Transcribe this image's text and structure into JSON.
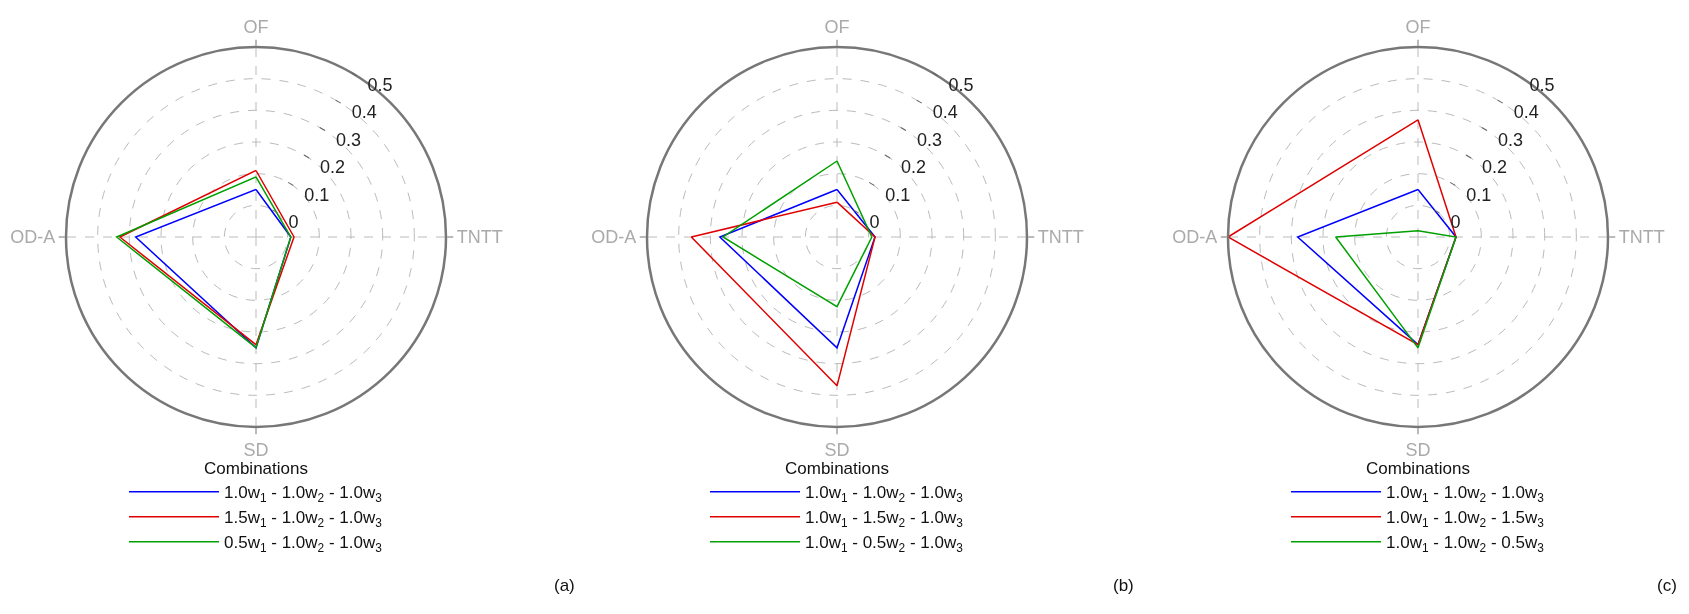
{
  "chart_data": [
    {
      "type": "radar",
      "categories": [
        "OF",
        "TNTT",
        "SD",
        "OD-A"
      ],
      "ylim": [
        -0.1,
        0.5
      ],
      "yticks": [
        0,
        0.1,
        0.2,
        0.3,
        0.4,
        0.5
      ],
      "grid": true,
      "legend": "bottom",
      "legend_title": "Combinations",
      "annotations": [
        "(a)"
      ],
      "series": [
        {
          "name": "1.0w$_{1}$ - 1.0w$_{2}$ - 1.0w$_{3}$",
          "color": "#0000ff",
          "values": [
            0.05,
            0.01,
            0.25,
            0.28
          ]
        },
        {
          "name": "1.5w$_{1}$ - 1.0w$_{2}$ - 1.0w$_{3}$",
          "color": "#e00000",
          "values": [
            0.11,
            0.02,
            0.24,
            0.33
          ]
        },
        {
          "name": "0.5w$_{1}$ - 1.0w$_{2}$ - 1.0w$_{3}$",
          "color": "#00a000",
          "values": [
            0.09,
            0.01,
            0.25,
            0.34
          ]
        }
      ]
    },
    {
      "type": "radar",
      "categories": [
        "OF",
        "TNTT",
        "SD",
        "OD-A"
      ],
      "ylim": [
        -0.1,
        0.5
      ],
      "yticks": [
        0,
        0.1,
        0.2,
        0.3,
        0.4,
        0.5
      ],
      "grid": true,
      "legend": "bottom",
      "legend_title": "Combinations",
      "annotations": [
        "(b)"
      ],
      "series": [
        {
          "name": "1.0w$_{1}$ - 1.0w$_{2}$ - 1.0w$_{3}$",
          "color": "#0000ff",
          "values": [
            0.05,
            0.02,
            0.25,
            0.27
          ]
        },
        {
          "name": "1.0w$_{1}$ - 1.5w$_{2}$ - 1.0w$_{3}$",
          "color": "#e00000",
          "values": [
            0.01,
            0.02,
            0.37,
            0.36
          ]
        },
        {
          "name": "1.0w$_{1}$ - 0.5w$_{2}$ - 1.0w$_{3}$",
          "color": "#00a000",
          "values": [
            0.14,
            0.01,
            0.12,
            0.26
          ]
        }
      ]
    },
    {
      "type": "radar",
      "categories": [
        "OF",
        "TNTT",
        "SD",
        "OD-A"
      ],
      "ylim": [
        -0.1,
        0.5
      ],
      "yticks": [
        0,
        0.1,
        0.2,
        0.3,
        0.4,
        0.5
      ],
      "grid": true,
      "legend": "bottom",
      "legend_title": "Combinations",
      "annotations": [
        "(c)"
      ],
      "series": [
        {
          "name": "1.0w$_{1}$ - 1.0w$_{2}$ - 1.0w$_{3}$",
          "color": "#0000ff",
          "values": [
            0.05,
            0.02,
            0.24,
            0.28
          ]
        },
        {
          "name": "1.0w$_{1}$ - 1.0w$_{2}$ - 1.5w$_{3}$",
          "color": "#e00000",
          "values": [
            0.27,
            0.02,
            0.24,
            0.5
          ]
        },
        {
          "name": "1.0w$_{1}$ - 1.0w$_{2}$ - 0.5w$_{3}$",
          "color": "#00a000",
          "values": [
            -0.08,
            0.02,
            0.25,
            0.16
          ]
        }
      ]
    }
  ]
}
